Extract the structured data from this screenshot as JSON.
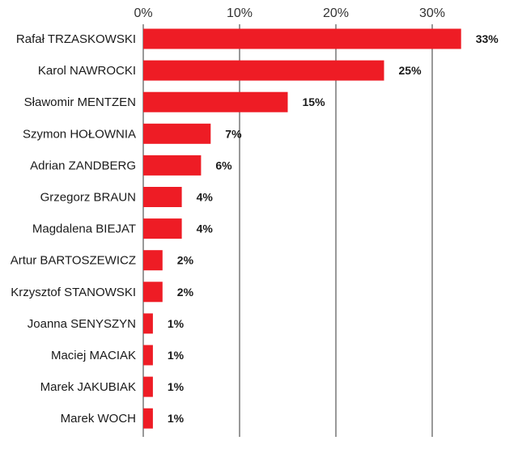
{
  "chart_data": {
    "type": "bar",
    "orientation": "horizontal",
    "title": "",
    "xlabel": "",
    "ylabel": "",
    "xlim": [
      0,
      0.35
    ],
    "x_ticks": [
      0,
      0.1,
      0.2,
      0.3
    ],
    "x_tick_labels": [
      "0%",
      "10%",
      "20%",
      "30%"
    ],
    "x_axis_position": "top",
    "grid": "vertical",
    "bar_color": "#ee1c25",
    "categories": [
      "Rafał TRZASKOWSKI",
      "Karol NAWROCKI",
      "Sławomir MENTZEN",
      "Szymon HOŁOWNIA",
      "Adrian ZANDBERG",
      "Grzegorz BRAUN",
      "Magdalena BIEJAT",
      "Artur BARTOSZEWICZ",
      "Krzysztof STANOWSKI",
      "Joanna SENYSZYN",
      "Maciej MACIAK",
      "Marek JAKUBIAK",
      "Marek WOCH"
    ],
    "values": [
      0.33,
      0.25,
      0.15,
      0.07,
      0.06,
      0.04,
      0.04,
      0.02,
      0.02,
      0.01,
      0.01,
      0.01,
      0.01
    ],
    "data_labels": [
      "33%",
      "25%",
      "15%",
      "7%",
      "6%",
      "4%",
      "4%",
      "2%",
      "2%",
      "1%",
      "1%",
      "1%",
      "1%"
    ]
  }
}
